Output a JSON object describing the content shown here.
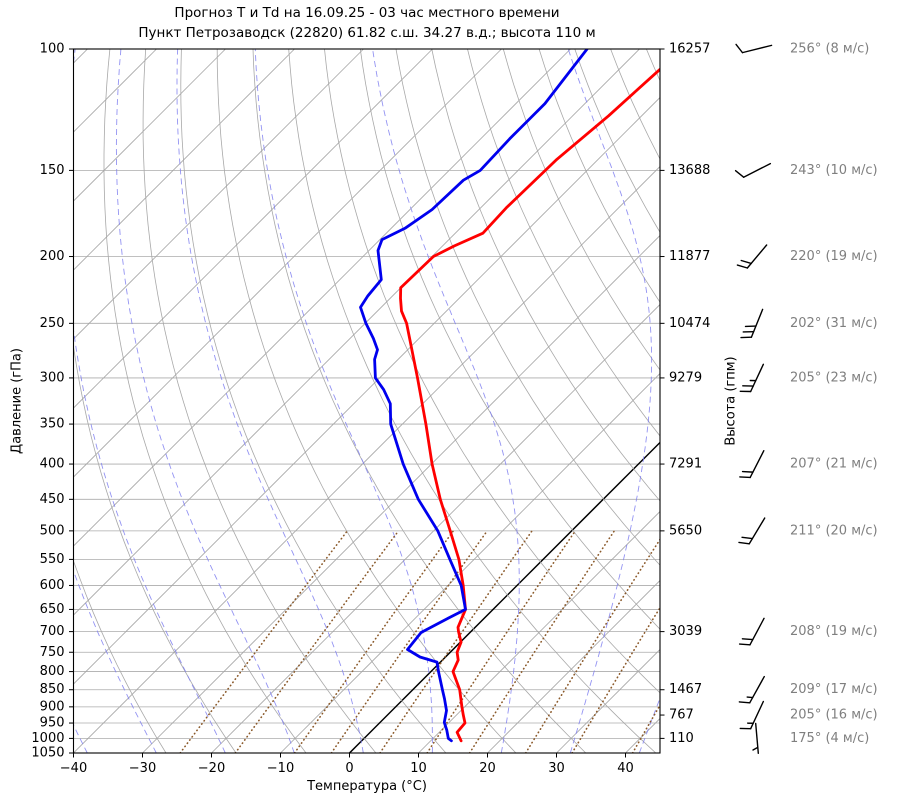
{
  "chart_data": {
    "type": "line",
    "title": "Прогноз Т и Td на 16.09.25 - 03 час местного времени",
    "subtitle": "Пункт Петрозаводск (22820) 61.82 с.ш. 34.27 в.д.; высота 110 м",
    "xlabel": "Температура (°C)",
    "ylabel_left": "Давление (гПа)",
    "ylabel_right": "Высота (гпм)",
    "xlim_bottom": [
      -40,
      45
    ],
    "plim": [
      100,
      1050
    ],
    "x_ticks": [
      {
        "v": -40,
        "label": "−40"
      },
      {
        "v": -30,
        "label": "−30"
      },
      {
        "v": -20,
        "label": "−20"
      },
      {
        "v": -10,
        "label": "−10"
      },
      {
        "v": 0,
        "label": "0"
      },
      {
        "v": 10,
        "label": "10"
      },
      {
        "v": 20,
        "label": "20"
      },
      {
        "v": 30,
        "label": "30"
      },
      {
        "v": 40,
        "label": "40"
      }
    ],
    "pressure_ticks": [
      {
        "v": 100,
        "label": "100"
      },
      {
        "v": 150,
        "label": "150"
      },
      {
        "v": 200,
        "label": "200"
      },
      {
        "v": 250,
        "label": "250"
      },
      {
        "v": 300,
        "label": "300"
      },
      {
        "v": 350,
        "label": "350"
      },
      {
        "v": 400,
        "label": "400"
      },
      {
        "v": 450,
        "label": "450"
      },
      {
        "v": 500,
        "label": "500"
      },
      {
        "v": 550,
        "label": "550"
      },
      {
        "v": 600,
        "label": "600"
      },
      {
        "v": 650,
        "label": "650"
      },
      {
        "v": 700,
        "label": "700"
      },
      {
        "v": 750,
        "label": "750"
      },
      {
        "v": 800,
        "label": "800"
      },
      {
        "v": 850,
        "label": "850"
      },
      {
        "v": 900,
        "label": "900"
      },
      {
        "v": 950,
        "label": "950"
      },
      {
        "v": 1000,
        "label": "1000"
      },
      {
        "v": 1050,
        "label": "1050"
      }
    ],
    "heights": [
      {
        "p": 100,
        "label": "16257"
      },
      {
        "p": 150,
        "label": "13688"
      },
      {
        "p": 200,
        "label": "11877"
      },
      {
        "p": 250,
        "label": "10474"
      },
      {
        "p": 300,
        "label": "9279"
      },
      {
        "p": 400,
        "label": "7291"
      },
      {
        "p": 500,
        "label": "5650"
      },
      {
        "p": 700,
        "label": "3039"
      },
      {
        "p": 850,
        "label": "1467"
      },
      {
        "p": 925,
        "label": "767"
      },
      {
        "p": 1000,
        "label": "110"
      }
    ],
    "winds": [
      {
        "p": 100,
        "dir": 256,
        "speed": 8,
        "label": "256° (8 м/с)"
      },
      {
        "p": 150,
        "dir": 243,
        "speed": 10,
        "label": "243° (10 м/с)"
      },
      {
        "p": 200,
        "dir": 220,
        "speed": 19,
        "label": "220° (19 м/с)"
      },
      {
        "p": 250,
        "dir": 202,
        "speed": 31,
        "label": "202° (31 м/с)"
      },
      {
        "p": 300,
        "dir": 205,
        "speed": 23,
        "label": "205° (23 м/с)"
      },
      {
        "p": 400,
        "dir": 207,
        "speed": 21,
        "label": "207° (21 м/с)"
      },
      {
        "p": 500,
        "dir": 211,
        "speed": 20,
        "label": "211° (20 м/с)"
      },
      {
        "p": 700,
        "dir": 208,
        "speed": 19,
        "label": "208° (19 м/с)"
      },
      {
        "p": 850,
        "dir": 209,
        "speed": 17,
        "label": "209° (17 м/с)"
      },
      {
        "p": 925,
        "dir": 205,
        "speed": 16,
        "label": "205° (16 м/с)"
      },
      {
        "p": 1000,
        "dir": 175,
        "speed": 4,
        "label": "175° (4 м/с)"
      }
    ],
    "series": [
      {
        "name": "temperature",
        "color": "#ff0000",
        "points": [
          [
            1008,
            14.4
          ],
          [
            1000,
            13.9
          ],
          [
            980,
            12.6
          ],
          [
            950,
            12.4
          ],
          [
            925,
            11.0
          ],
          [
            900,
            9.6
          ],
          [
            850,
            6.8
          ],
          [
            800,
            3.2
          ],
          [
            770,
            2.3
          ],
          [
            750,
            1.0
          ],
          [
            725,
            0.1
          ],
          [
            700,
            -1.8
          ],
          [
            690,
            -2.5
          ],
          [
            650,
            -4.0
          ],
          [
            600,
            -7.8
          ],
          [
            550,
            -12.2
          ],
          [
            500,
            -17.6
          ],
          [
            450,
            -23.6
          ],
          [
            400,
            -29.9
          ],
          [
            350,
            -36.6
          ],
          [
            300,
            -44.5
          ],
          [
            250,
            -54.0
          ],
          [
            240,
            -56.5
          ],
          [
            230,
            -58.5
          ],
          [
            222,
            -60.0
          ],
          [
            200,
            -59.8
          ],
          [
            193,
            -58.3
          ],
          [
            185,
            -56.0
          ],
          [
            170,
            -56.3
          ],
          [
            145,
            -56.0
          ],
          [
            125,
            -54.8
          ],
          [
            107,
            -54.1
          ],
          [
            100,
            -51.5
          ]
        ]
      },
      {
        "name": "dewpoint",
        "color": "#0000ee",
        "points": [
          [
            1008,
            13.0
          ],
          [
            1000,
            12.2
          ],
          [
            973,
            10.8
          ],
          [
            948,
            9.3
          ],
          [
            911,
            7.9
          ],
          [
            876,
            5.9
          ],
          [
            850,
            4.3
          ],
          [
            800,
            1.1
          ],
          [
            775,
            -0.5
          ],
          [
            762,
            -3.7
          ],
          [
            743,
            -6.6
          ],
          [
            702,
            -7.1
          ],
          [
            669,
            -5.2
          ],
          [
            650,
            -4.0
          ],
          [
            600,
            -8.1
          ],
          [
            550,
            -13.5
          ],
          [
            500,
            -19.4
          ],
          [
            450,
            -26.8
          ],
          [
            400,
            -34.1
          ],
          [
            350,
            -41.7
          ],
          [
            327,
            -44.7
          ],
          [
            312,
            -47.7
          ],
          [
            300,
            -50.6
          ],
          [
            282,
            -53.4
          ],
          [
            273,
            -54.4
          ],
          [
            263,
            -56.6
          ],
          [
            250,
            -59.9
          ],
          [
            237,
            -63.0
          ],
          [
            228,
            -63.6
          ],
          [
            216,
            -64.0
          ],
          [
            196,
            -68.7
          ],
          [
            189,
            -69.7
          ],
          [
            182,
            -68.0
          ],
          [
            171,
            -66.8
          ],
          [
            155,
            -66.5
          ],
          [
            150,
            -65.5
          ],
          [
            135,
            -65.8
          ],
          [
            120,
            -65.8
          ],
          [
            100,
            -67.6
          ]
        ]
      }
    ],
    "reference_lines": {
      "isotherms_c": {
        "start": -160,
        "end": 40,
        "step": 10,
        "highlight": 0
      },
      "dry_adiabats_theta_c": {
        "start": -30,
        "end": 160,
        "step": 10
      },
      "moist_adiabats_start_c_at_1050": {
        "start": -38,
        "end": 42,
        "step": 10
      },
      "mixing_ratios_g_kg": [
        0.5,
        1,
        2,
        3,
        5,
        8,
        12,
        20,
        30,
        50
      ],
      "mixing_ratio_top_hpa": 500
    },
    "colors": {
      "temperature": "#ff0000",
      "dewpoint": "#0000ee",
      "grid": "#ababab",
      "isotherm": "#a6a6a6",
      "zero_isotherm": "#000000",
      "dry_adiabat": "#a8a8a8",
      "moist_adiabat": "#8181f0",
      "mixing_ratio": "#8b5a2b",
      "wind_text": "#7f7f7f",
      "frame": "#000000",
      "barb": "#000000"
    }
  }
}
